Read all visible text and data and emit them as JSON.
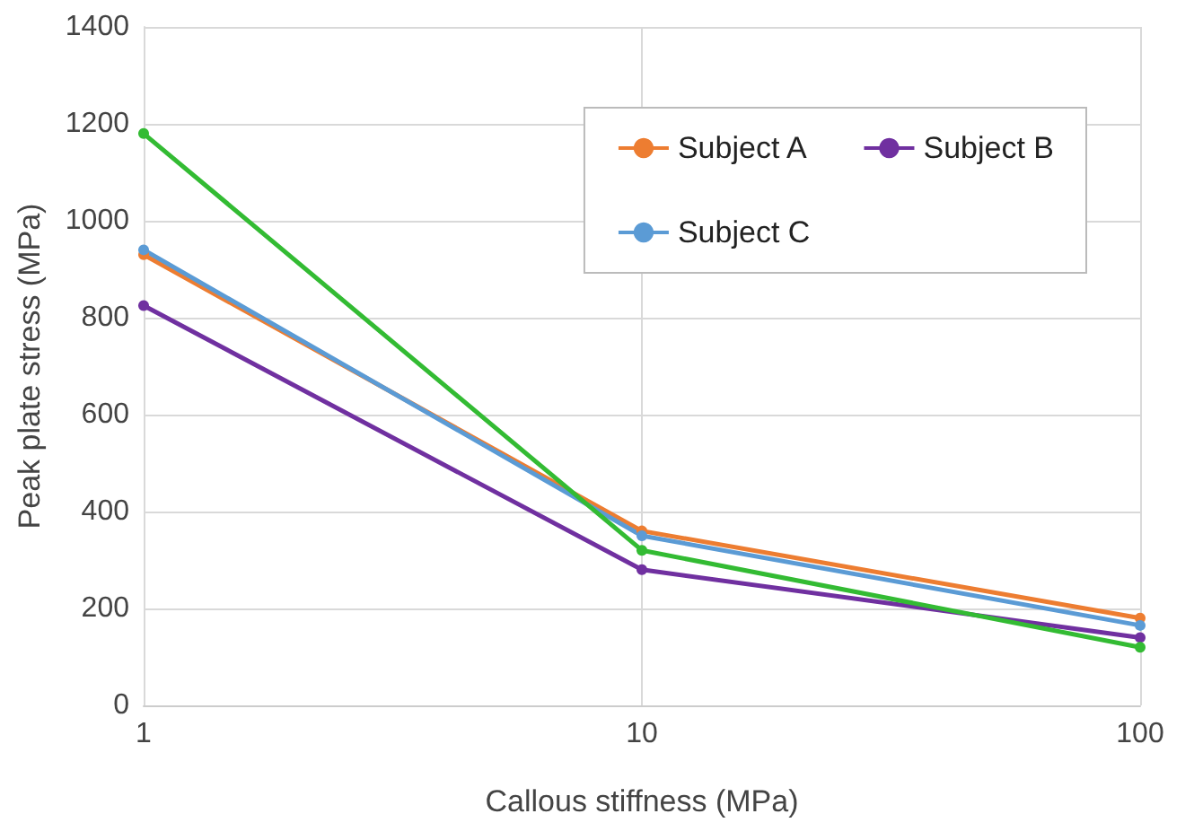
{
  "chart_data": {
    "type": "line",
    "xlabel": "Callous stiffness (MPa)",
    "ylabel": "Peak plate stress (MPa)",
    "x": [
      1,
      10,
      100
    ],
    "log": "x",
    "series": [
      {
        "name": "Subject A",
        "color": "#ed7d31",
        "values": [
          930,
          360,
          180
        ]
      },
      {
        "name": "Subject B",
        "color": "#7030a0",
        "values": [
          825,
          280,
          140
        ]
      },
      {
        "name": "Subject C",
        "color": "#5b9bd5",
        "values": [
          940,
          350,
          165
        ]
      },
      {
        "color": "#33bb33",
        "values": [
          1180,
          320,
          120
        ]
      }
    ],
    "xlim": [
      1,
      100
    ],
    "xticks": [
      1,
      10,
      100
    ],
    "ylim": [
      0,
      1400
    ],
    "yticks": [
      0,
      200,
      400,
      600,
      800,
      1000,
      1200,
      1400
    ],
    "grid": true,
    "legend": "top right",
    "marker": "circle",
    "line_style": "solid"
  }
}
